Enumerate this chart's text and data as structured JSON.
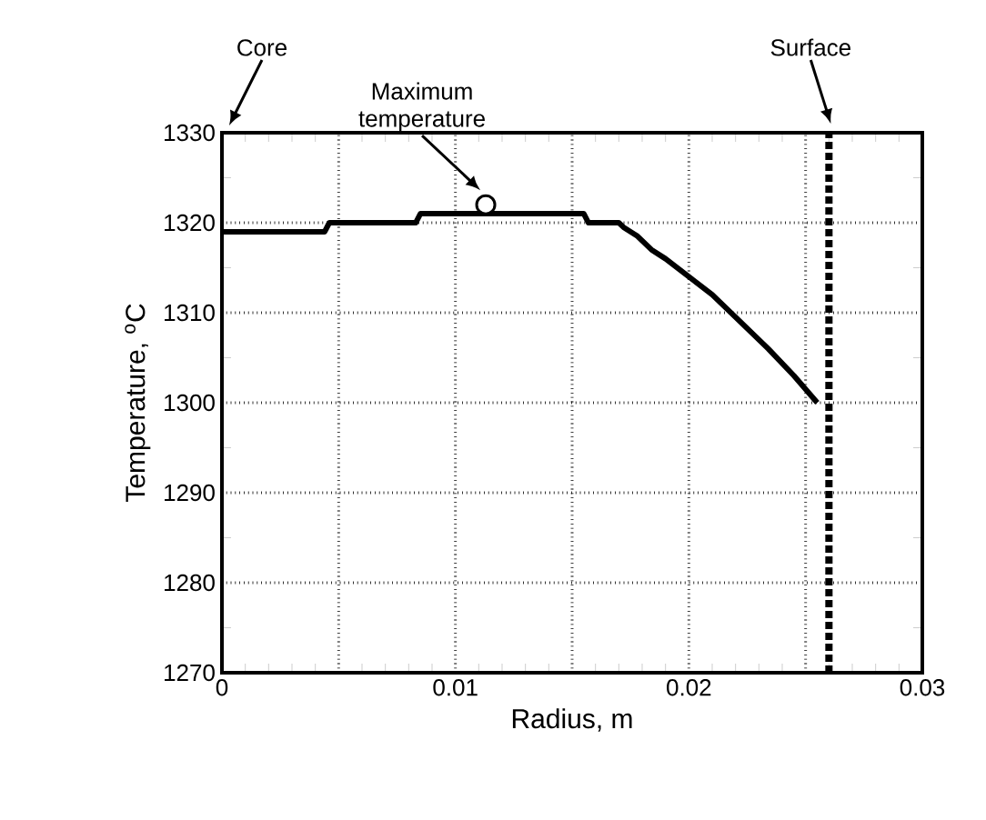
{
  "chart_data": {
    "type": "line",
    "xlabel": "Radius, m",
    "ylabel": "Temperature, $^{o}$C",
    "xlim": [
      0,
      0.03
    ],
    "ylim": [
      1270,
      1330
    ],
    "xticks": [
      0,
      {
        "value": 0.005,
        "label": null
      },
      0.01,
      {
        "value": 0.015,
        "label": null
      },
      0.02,
      {
        "value": 0.025,
        "label": null
      },
      0.03
    ],
    "yticks": [
      1270,
      1280,
      1290,
      1300,
      1310,
      1320,
      1330
    ],
    "grid": true,
    "marker": "none",
    "line_style": "solid",
    "series": [
      {
        "color": "#000000",
        "x": [
          0,
          0.0044,
          0.0046,
          0.0083,
          0.0085,
          0.0155,
          0.0157,
          0.017,
          0.0172,
          0.0178,
          0.0184,
          0.019,
          0.02,
          0.021,
          0.022,
          0.0234,
          0.0245,
          0.0255
        ],
        "values": [
          1319,
          1319,
          1320,
          1320,
          1321,
          1321,
          1320,
          1320,
          1319.5,
          1318.5,
          1317,
          1316,
          1314,
          1312,
          1309.5,
          1306,
          1303,
          1300
        ]
      },
      {
        "type": "scatter",
        "marker": "circle",
        "color": "#000000",
        "x": [
          0.0113
        ],
        "values": [
          1322
        ]
      }
    ],
    "ref_lines": [
      {
        "axis": "x",
        "value": 0.026,
        "line_style": "dotted",
        "color": "#000000"
      }
    ],
    "annotations": [
      "Core",
      "Maximum temperature",
      "Surface"
    ]
  }
}
